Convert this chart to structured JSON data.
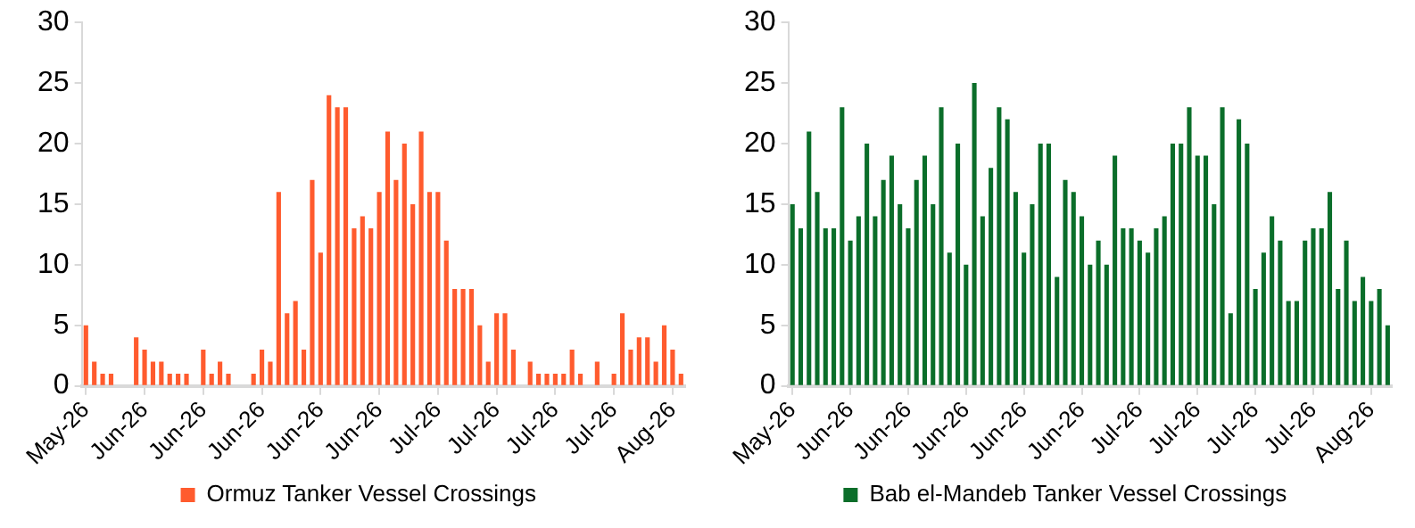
{
  "chart_data": [
    {
      "type": "bar",
      "categories": [
        "May-26",
        null,
        null,
        null,
        null,
        null,
        null,
        "Jun-26",
        null,
        null,
        null,
        null,
        null,
        null,
        "Jun-26",
        null,
        null,
        null,
        null,
        null,
        null,
        "Jun-26",
        null,
        null,
        null,
        null,
        null,
        null,
        "Jun-26",
        null,
        null,
        null,
        null,
        null,
        null,
        "Jun-26",
        null,
        null,
        null,
        null,
        null,
        null,
        "Jul-26",
        null,
        null,
        null,
        null,
        null,
        null,
        "Jul-26",
        null,
        null,
        null,
        null,
        null,
        null,
        "Jul-26",
        null,
        null,
        null,
        null,
        null,
        null,
        "Jul-26",
        null,
        null,
        null,
        null,
        null,
        null,
        "Aug-26",
        null
      ],
      "series": [
        {
          "name": "Ormuz Tanker Vessel Crossings",
          "color": "#ff5b2e",
          "values": [
            5,
            2,
            1,
            1,
            null,
            null,
            4,
            3,
            2,
            2,
            1,
            1,
            1,
            null,
            3,
            1,
            2,
            1,
            null,
            null,
            1,
            3,
            2,
            16,
            6,
            7,
            3,
            17,
            11,
            24,
            23,
            23,
            13,
            14,
            13,
            16,
            21,
            17,
            20,
            15,
            21,
            16,
            16,
            12,
            8,
            8,
            8,
            5,
            2,
            6,
            6,
            3,
            null,
            2,
            1,
            1,
            1,
            1,
            3,
            1,
            null,
            2,
            null,
            1,
            6,
            3,
            4,
            4,
            2,
            5,
            3,
            1
          ]
        }
      ],
      "ylim": [
        0,
        30
      ],
      "yticks": [
        0,
        5,
        10,
        15,
        20,
        25,
        30
      ],
      "grid": false,
      "legend": "bottom"
    },
    {
      "type": "bar",
      "categories": [
        "May-26",
        null,
        null,
        null,
        null,
        null,
        null,
        "Jun-26",
        null,
        null,
        null,
        null,
        null,
        null,
        "Jun-26",
        null,
        null,
        null,
        null,
        null,
        null,
        "Jun-26",
        null,
        null,
        null,
        null,
        null,
        null,
        "Jun-26",
        null,
        null,
        null,
        null,
        null,
        null,
        "Jun-26",
        null,
        null,
        null,
        null,
        null,
        null,
        "Jul-26",
        null,
        null,
        null,
        null,
        null,
        null,
        "Jul-26",
        null,
        null,
        null,
        null,
        null,
        null,
        "Jul-26",
        null,
        null,
        null,
        null,
        null,
        null,
        "Jul-26",
        null,
        null,
        null,
        null,
        null,
        null,
        "Aug-26",
        null,
        null
      ],
      "series": [
        {
          "name": "Bab el-Mandeb Tanker Vessel Crossings",
          "color": "#0b6e2a",
          "values": [
            15,
            13,
            21,
            16,
            13,
            13,
            23,
            12,
            14,
            20,
            14,
            17,
            19,
            15,
            13,
            17,
            19,
            15,
            23,
            11,
            20,
            10,
            25,
            14,
            18,
            23,
            22,
            16,
            11,
            15,
            20,
            20,
            9,
            17,
            16,
            14,
            10,
            12,
            10,
            19,
            13,
            13,
            12,
            11,
            13,
            14,
            20,
            20,
            23,
            19,
            19,
            15,
            23,
            6,
            22,
            20,
            8,
            11,
            14,
            12,
            7,
            7,
            12,
            13,
            13,
            16,
            8,
            12,
            7,
            9,
            7,
            8,
            5
          ]
        }
      ],
      "ylim": [
        0,
        30
      ],
      "yticks": [
        0,
        5,
        10,
        15,
        20,
        25,
        30
      ],
      "grid": false,
      "legend": "bottom"
    }
  ]
}
